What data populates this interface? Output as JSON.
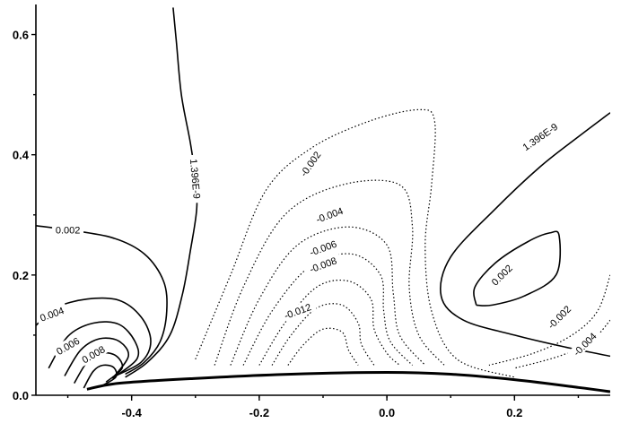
{
  "chart_data": {
    "type": "contour",
    "title": "",
    "xlabel": "",
    "ylabel": "",
    "xlim": [
      -0.55,
      0.35
    ],
    "ylim": [
      0.0,
      0.65
    ],
    "x_ticks": [
      -0.4,
      -0.2,
      0.0,
      0.2
    ],
    "x_tick_labels": [
      "-0.4",
      "-0.2",
      "0.0",
      "0.2"
    ],
    "y_ticks": [
      0.0,
      0.2,
      0.4,
      0.6
    ],
    "y_tick_labels": [
      "0.0",
      "0.2",
      "0.4",
      "0.6"
    ],
    "grid": false,
    "contour_labels": [
      {
        "text": "1.396E-9",
        "x": -0.3,
        "y": 0.36,
        "rotate": 85
      },
      {
        "text": "1.396E-9",
        "x": 0.24,
        "y": 0.43,
        "rotate": -35
      },
      {
        "text": "0.002",
        "x": -0.5,
        "y": 0.275,
        "rotate": 0
      },
      {
        "text": "-0.002",
        "x": -0.12,
        "y": 0.385,
        "rotate": -55
      },
      {
        "text": "-0.004",
        "x": -0.09,
        "y": 0.3,
        "rotate": -20
      },
      {
        "text": "-0.006",
        "x": -0.1,
        "y": 0.245,
        "rotate": -20
      },
      {
        "text": "-0.008",
        "x": -0.1,
        "y": 0.217,
        "rotate": -20
      },
      {
        "text": "-0.012",
        "x": -0.14,
        "y": 0.14,
        "rotate": -20
      },
      {
        "text": "0.004",
        "x": -0.525,
        "y": 0.135,
        "rotate": -20
      },
      {
        "text": "0.006",
        "x": -0.5,
        "y": 0.082,
        "rotate": -30
      },
      {
        "text": "0.008",
        "x": -0.46,
        "y": 0.068,
        "rotate": -30
      },
      {
        "text": "0.002",
        "x": 0.18,
        "y": 0.2,
        "rotate": -45
      },
      {
        "text": "-0.002",
        "x": 0.27,
        "y": 0.13,
        "rotate": -45
      },
      {
        "text": "-0.004",
        "x": 0.31,
        "y": 0.085,
        "rotate": -45
      }
    ],
    "contours": [
      {
        "name": "zero-left",
        "style": "solid",
        "points": [
          [
            -0.335,
            0.645
          ],
          [
            -0.33,
            0.59
          ],
          [
            -0.322,
            0.5
          ],
          [
            -0.308,
            0.42
          ],
          [
            -0.3,
            0.36
          ],
          [
            -0.298,
            0.31
          ],
          [
            -0.308,
            0.24
          ],
          [
            -0.32,
            0.17
          ],
          [
            -0.34,
            0.1
          ],
          [
            -0.375,
            0.055
          ],
          [
            -0.41,
            0.03
          ]
        ]
      },
      {
        "name": "pos-0.002-outer",
        "style": "solid",
        "points": [
          [
            -0.55,
            0.282
          ],
          [
            -0.5,
            0.275
          ],
          [
            -0.43,
            0.262
          ],
          [
            -0.38,
            0.235
          ],
          [
            -0.35,
            0.19
          ],
          [
            -0.345,
            0.14
          ],
          [
            -0.355,
            0.09
          ],
          [
            -0.38,
            0.055
          ],
          [
            -0.41,
            0.035
          ]
        ]
      },
      {
        "name": "pos-0.004",
        "style": "solid",
        "points": [
          [
            -0.55,
            0.116
          ],
          [
            -0.52,
            0.145
          ],
          [
            -0.47,
            0.16
          ],
          [
            -0.42,
            0.158
          ],
          [
            -0.385,
            0.13
          ],
          [
            -0.37,
            0.09
          ],
          [
            -0.385,
            0.055
          ],
          [
            -0.43,
            0.03
          ]
        ]
      },
      {
        "name": "pos-0.006",
        "style": "solid",
        "points": [
          [
            -0.53,
            0.045
          ],
          [
            -0.5,
            0.098
          ],
          [
            -0.46,
            0.12
          ],
          [
            -0.42,
            0.118
          ],
          [
            -0.395,
            0.09
          ],
          [
            -0.392,
            0.06
          ],
          [
            -0.43,
            0.028
          ]
        ]
      },
      {
        "name": "pos-0.008",
        "style": "solid",
        "points": [
          [
            -0.505,
            0.032
          ],
          [
            -0.48,
            0.075
          ],
          [
            -0.45,
            0.094
          ],
          [
            -0.42,
            0.09
          ],
          [
            -0.405,
            0.065
          ],
          [
            -0.43,
            0.028
          ]
        ]
      },
      {
        "name": "pos-0.010",
        "style": "solid",
        "points": [
          [
            -0.49,
            0.02
          ],
          [
            -0.47,
            0.055
          ],
          [
            -0.45,
            0.07
          ],
          [
            -0.425,
            0.066
          ],
          [
            -0.415,
            0.045
          ],
          [
            -0.44,
            0.022
          ]
        ]
      },
      {
        "name": "pos-0.012",
        "style": "solid",
        "points": [
          [
            -0.475,
            0.012
          ],
          [
            -0.46,
            0.04
          ],
          [
            -0.445,
            0.05
          ],
          [
            -0.428,
            0.046
          ],
          [
            -0.425,
            0.03
          ],
          [
            -0.45,
            0.014
          ]
        ]
      },
      {
        "name": "neg-0.002",
        "style": "dotted",
        "points": [
          [
            -0.3,
            0.06
          ],
          [
            -0.245,
            0.2
          ],
          [
            -0.19,
            0.34
          ],
          [
            -0.12,
            0.41
          ],
          [
            -0.03,
            0.455
          ],
          [
            0.05,
            0.475
          ],
          [
            0.075,
            0.455
          ],
          [
            0.07,
            0.35
          ],
          [
            0.06,
            0.25
          ],
          [
            0.07,
            0.14
          ],
          [
            0.11,
            0.06
          ],
          [
            0.2,
            0.03
          ]
        ]
      },
      {
        "name": "neg-0.004",
        "style": "dotted",
        "points": [
          [
            -0.27,
            0.05
          ],
          [
            -0.225,
            0.18
          ],
          [
            -0.16,
            0.3
          ],
          [
            -0.07,
            0.35
          ],
          [
            0.02,
            0.35
          ],
          [
            0.04,
            0.28
          ],
          [
            0.035,
            0.18
          ],
          [
            0.05,
            0.1
          ],
          [
            0.09,
            0.05
          ]
        ]
      },
      {
        "name": "neg-0.006",
        "style": "dotted",
        "points": [
          [
            -0.245,
            0.05
          ],
          [
            -0.2,
            0.16
          ],
          [
            -0.14,
            0.25
          ],
          [
            -0.06,
            0.28
          ],
          [
            0.0,
            0.25
          ],
          [
            0.01,
            0.17
          ],
          [
            0.02,
            0.1
          ],
          [
            0.06,
            0.05
          ]
        ]
      },
      {
        "name": "neg-0.008",
        "style": "dotted",
        "points": [
          [
            -0.225,
            0.05
          ],
          [
            -0.18,
            0.14
          ],
          [
            -0.12,
            0.215
          ],
          [
            -0.055,
            0.235
          ],
          [
            -0.01,
            0.2
          ],
          [
            -0.005,
            0.14
          ],
          [
            0.005,
            0.09
          ],
          [
            0.04,
            0.05
          ]
        ]
      },
      {
        "name": "neg-0.010",
        "style": "dotted",
        "points": [
          [
            -0.2,
            0.05
          ],
          [
            -0.16,
            0.12
          ],
          [
            -0.11,
            0.18
          ],
          [
            -0.06,
            0.19
          ],
          [
            -0.025,
            0.16
          ],
          [
            -0.02,
            0.11
          ],
          [
            0.0,
            0.07
          ],
          [
            0.02,
            0.05
          ]
        ]
      },
      {
        "name": "neg-0.012",
        "style": "dotted",
        "points": [
          [
            -0.18,
            0.05
          ],
          [
            -0.15,
            0.1
          ],
          [
            -0.11,
            0.145
          ],
          [
            -0.07,
            0.15
          ],
          [
            -0.045,
            0.12
          ],
          [
            -0.04,
            0.085
          ],
          [
            -0.02,
            0.05
          ]
        ]
      },
      {
        "name": "neg-0.014",
        "style": "dotted",
        "points": [
          [
            -0.155,
            0.05
          ],
          [
            -0.13,
            0.085
          ],
          [
            -0.1,
            0.11
          ],
          [
            -0.07,
            0.105
          ],
          [
            -0.06,
            0.075
          ],
          [
            -0.045,
            0.05
          ]
        ]
      },
      {
        "name": "neg-right-0.002",
        "style": "dotted",
        "points": [
          [
            0.35,
            0.2
          ],
          [
            0.33,
            0.14
          ],
          [
            0.29,
            0.1
          ],
          [
            0.23,
            0.07
          ],
          [
            0.16,
            0.05
          ]
        ]
      },
      {
        "name": "neg-right-0.004",
        "style": "dotted",
        "points": [
          [
            0.35,
            0.125
          ],
          [
            0.32,
            0.09
          ],
          [
            0.27,
            0.065
          ],
          [
            0.2,
            0.045
          ]
        ]
      },
      {
        "name": "zero-right",
        "style": "solid",
        "points": [
          [
            0.35,
            0.47
          ],
          [
            0.3,
            0.43
          ],
          [
            0.24,
            0.38
          ],
          [
            0.17,
            0.31
          ],
          [
            0.1,
            0.23
          ],
          [
            0.085,
            0.165
          ],
          [
            0.12,
            0.125
          ],
          [
            0.2,
            0.1
          ],
          [
            0.28,
            0.08
          ],
          [
            0.35,
            0.065
          ]
        ]
      },
      {
        "name": "pos-right-0.002",
        "style": "solid",
        "points": [
          [
            0.14,
            0.15
          ],
          [
            0.138,
            0.18
          ],
          [
            0.17,
            0.22
          ],
          [
            0.22,
            0.255
          ],
          [
            0.255,
            0.27
          ],
          [
            0.27,
            0.265
          ],
          [
            0.265,
            0.2
          ],
          [
            0.215,
            0.165
          ],
          [
            0.165,
            0.15
          ],
          [
            0.14,
            0.15
          ]
        ]
      },
      {
        "name": "body-surface",
        "style": "body",
        "points": [
          [
            -0.47,
            0.01
          ],
          [
            -0.42,
            0.02
          ],
          [
            -0.3,
            0.028
          ],
          [
            -0.15,
            0.035
          ],
          [
            0.0,
            0.038
          ],
          [
            0.1,
            0.035
          ],
          [
            0.2,
            0.026
          ],
          [
            0.3,
            0.013
          ],
          [
            0.35,
            0.006
          ]
        ]
      }
    ]
  }
}
